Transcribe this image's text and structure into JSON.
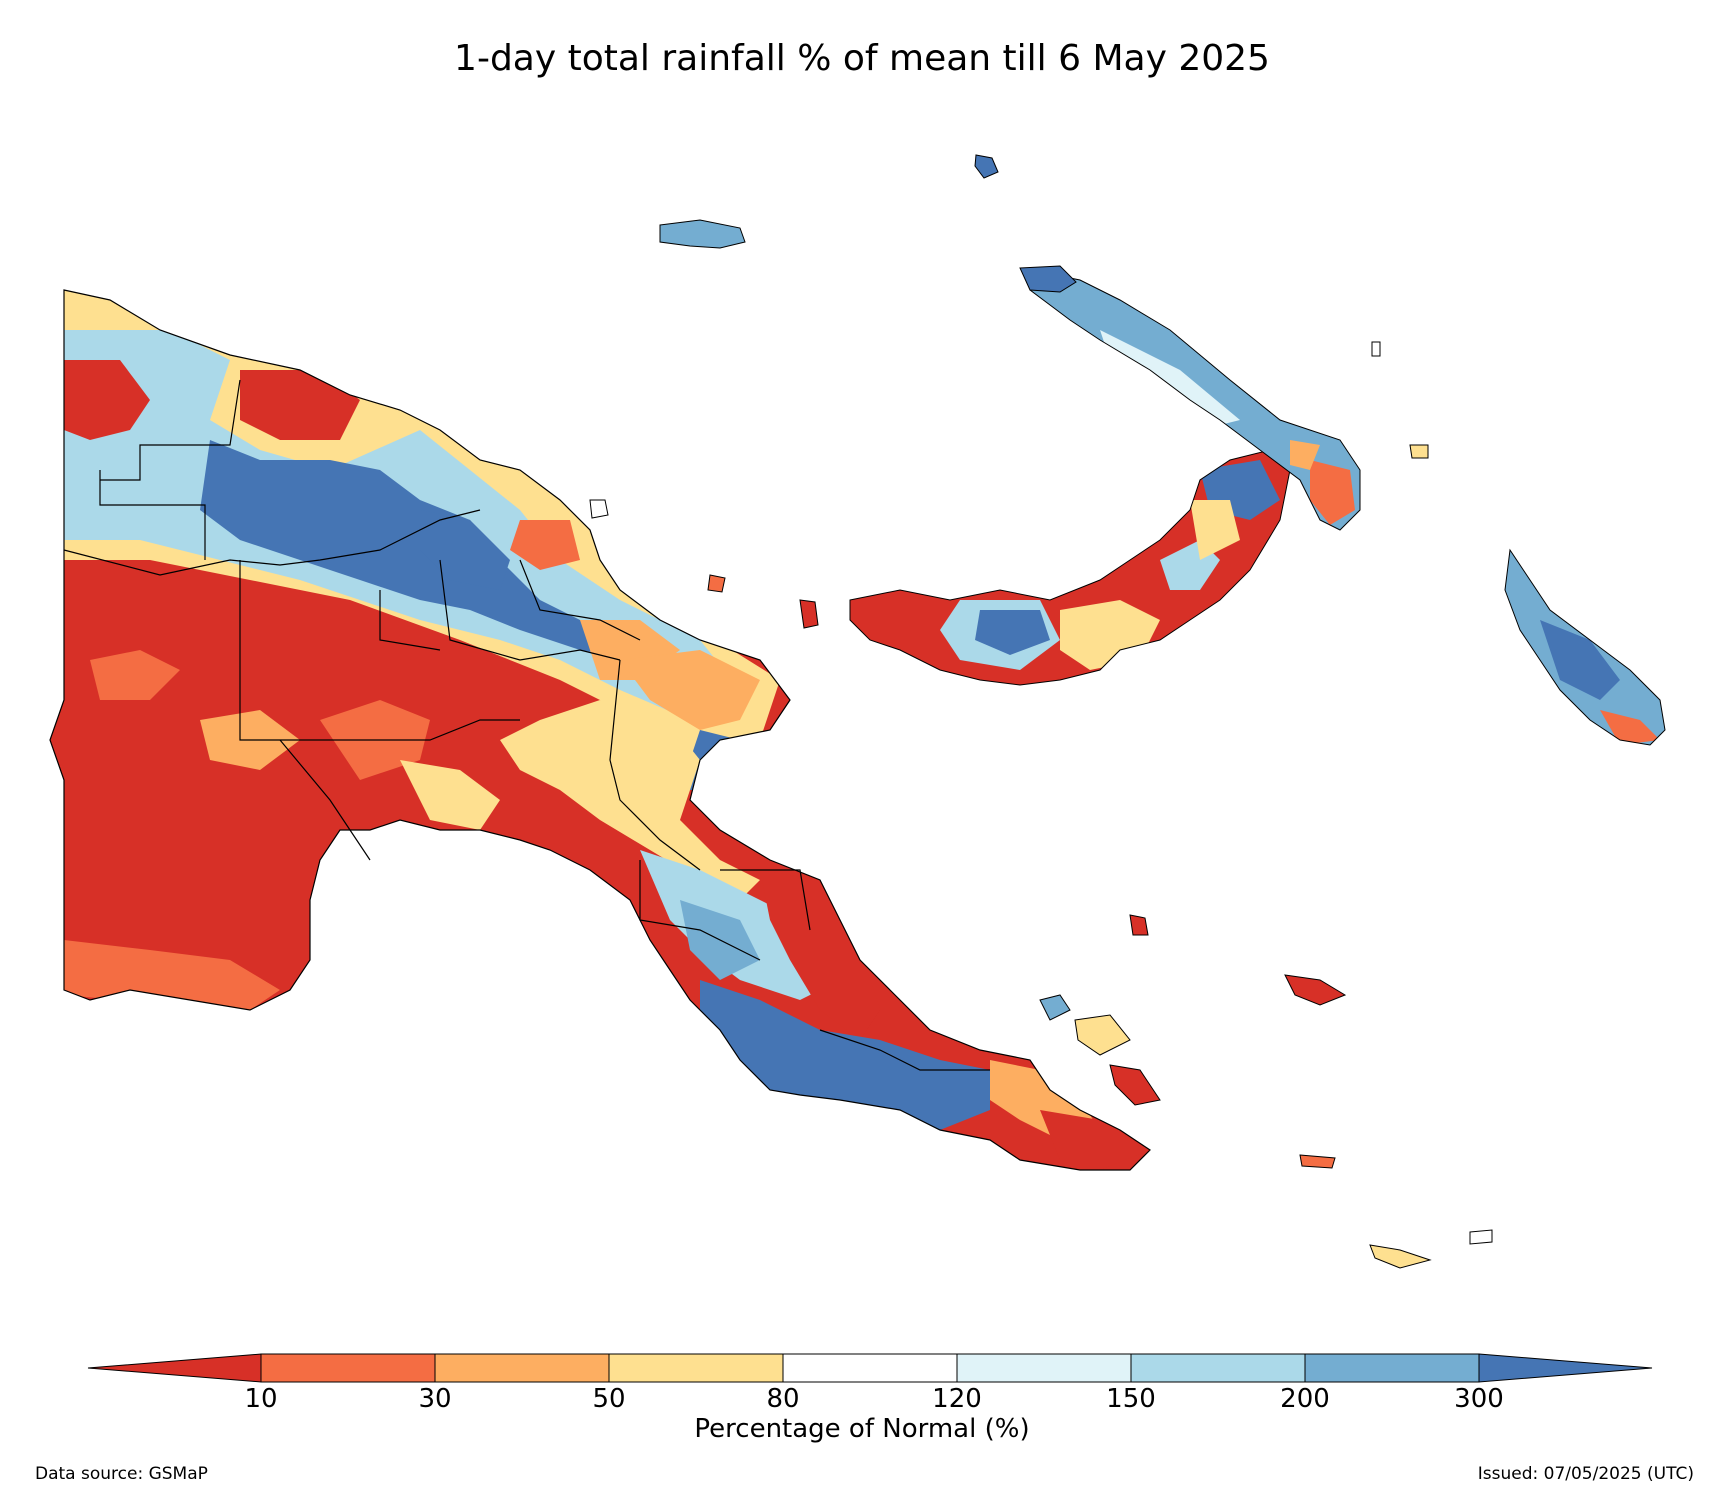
{
  "title": "1-day total rainfall % of mean till 6 May 2025",
  "colorbar": {
    "label": "Percentage of Normal (%)",
    "ticks": [
      "10",
      "30",
      "50",
      "80",
      "120",
      "150",
      "200",
      "300"
    ],
    "bins": [
      {
        "range": "<10",
        "color": "#d73027"
      },
      {
        "range": "10-30",
        "color": "#f46d43"
      },
      {
        "range": "30-50",
        "color": "#fdae61"
      },
      {
        "range": "50-80",
        "color": "#fee090"
      },
      {
        "range": "80-120",
        "color": "#ffffff"
      },
      {
        "range": "120-150",
        "color": "#e0f3f8"
      },
      {
        "range": "150-200",
        "color": "#abd9e9"
      },
      {
        "range": "200-300",
        "color": "#74add1"
      },
      {
        "range": ">300",
        "color": "#4575b4"
      }
    ]
  },
  "footer": {
    "source": "Data source: GSMaP",
    "issued": "Issued: 07/05/2025 (UTC)"
  }
}
